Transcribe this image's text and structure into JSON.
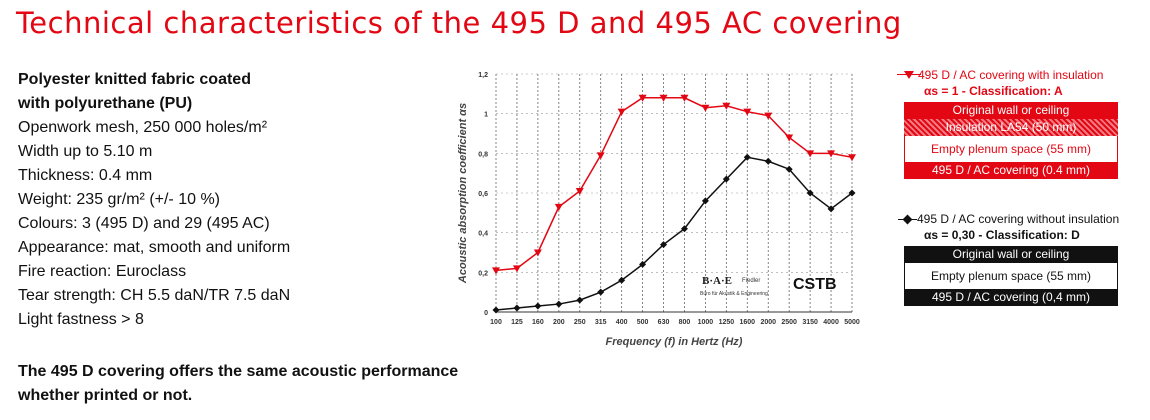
{
  "page": {
    "title": "Technical characteristics of the 495 D and 495 AC covering"
  },
  "specs": {
    "heading_line1": "Polyester knitted fabric coated",
    "heading_line2": "with polyurethane (PU)",
    "lines": [
      "Openwork mesh, 250 000 holes/m²",
      "Width up to 5.10 m",
      "Thickness: 0.4 mm",
      "Weight: 235 gr/m² (+/- 10 %)",
      "Colours: 3 (495 D) and 29 (495 AC)",
      "Appearance: mat, smooth and uniform",
      "Fire reaction: Euroclass",
      "Tear strength: CH 5.5 daN/TR 7.5 daN",
      "Light fastness > 8"
    ],
    "note_line1": "The 495 D covering offers the same acoustic performance",
    "note_line2": "whether printed or not."
  },
  "chart_data": {
    "type": "line",
    "categories": [
      "100",
      "125",
      "160",
      "200",
      "250",
      "315",
      "400",
      "500",
      "630",
      "800",
      "1000",
      "1250",
      "1600",
      "2000",
      "2500",
      "3150",
      "4000",
      "5000"
    ],
    "xlabel": "Frequency (f) in Hertz (Hz)",
    "ylabel": "Acoustic absorption coefficient αs",
    "ylim": [
      0,
      1.2
    ],
    "yticks": [
      "0",
      "0,2",
      "0,4",
      "0,6",
      "0,8",
      "1",
      "1,2"
    ],
    "grid": "vertical dashed",
    "colors": {
      "red": "#e30613",
      "black": "#111111"
    },
    "series": [
      {
        "name": "495 D / AC covering with insulation",
        "color": "#e30613",
        "marker": "triangle-down",
        "values": [
          0.21,
          0.22,
          0.3,
          0.53,
          0.61,
          0.79,
          1.01,
          1.08,
          1.08,
          1.08,
          1.03,
          1.04,
          1.01,
          0.99,
          0.88,
          0.8,
          0.8,
          0.78
        ]
      },
      {
        "name": "495 D / AC covering without insulation",
        "color": "#111111",
        "marker": "diamond",
        "values": [
          0.01,
          0.02,
          0.03,
          0.04,
          0.06,
          0.1,
          0.16,
          0.24,
          0.34,
          0.42,
          0.56,
          0.67,
          0.78,
          0.76,
          0.72,
          0.6,
          0.52,
          0.6
        ]
      }
    ],
    "logos": {
      "bae": "B·A·E",
      "bae_sub": "Büro für Akustik & Engineering",
      "fiedler": "Fiedler",
      "cstb": "CSTB"
    }
  },
  "legend": {
    "with": {
      "label": "495 D / AC covering with insulation",
      "alpha": "αs = 1 - Classification: A",
      "layers": [
        "Original wall or ceiling",
        "Insulation LA54 (50 mm)",
        "Empty plenum space (55 mm)",
        "495 D / AC covering (0.4 mm)"
      ]
    },
    "without": {
      "label": "495 D / AC covering without insulation",
      "alpha": "αs = 0,30 - Classification: D",
      "layers": [
        "Original wall or ceiling",
        "Empty plenum space (55 mm)",
        "495 D / AC covering (0,4 mm)"
      ]
    }
  }
}
